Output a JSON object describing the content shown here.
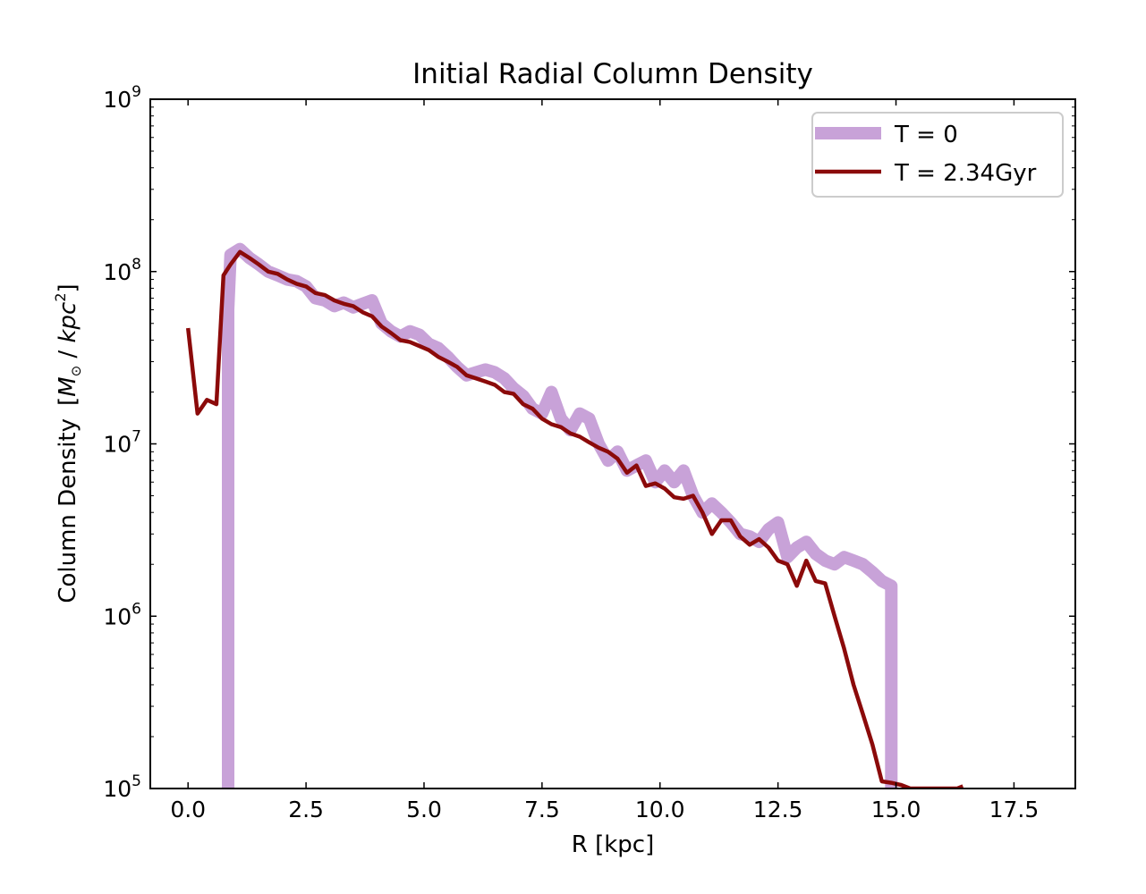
{
  "chart_data": {
    "type": "line",
    "title": "Initial Radial Column Density",
    "xlabel": "R [kpc]",
    "ylabel": "Column Density",
    "ylabel_unit": {
      "open": "[",
      "M": "M",
      "sub": "⊙",
      "sep": " / ",
      "kpc": "kpc",
      "sup": "2",
      "close": "]"
    },
    "xlim": [
      -0.8,
      18.8
    ],
    "ylim": [
      100000,
      1000000000
    ],
    "yscale": "log",
    "xticks": [
      0.0,
      2.5,
      5.0,
      7.5,
      10.0,
      12.5,
      15.0,
      17.5
    ],
    "xtick_labels": [
      "0.0",
      "2.5",
      "5.0",
      "7.5",
      "10.0",
      "12.5",
      "15.0",
      "17.5"
    ],
    "yticks": [
      {
        "value": 100000,
        "base": "10",
        "exp": "5"
      },
      {
        "value": 1000000,
        "base": "10",
        "exp": "6"
      },
      {
        "value": 10000000,
        "base": "10",
        "exp": "7"
      },
      {
        "value": 100000000,
        "base": "10",
        "exp": "8"
      },
      {
        "value": 1000000000,
        "base": "10",
        "exp": "9"
      }
    ],
    "grid": false,
    "legend_position": "top-right",
    "series": [
      {
        "name": "T = 0",
        "color": "#c8a2d8",
        "x": [
          0.85,
          0.85,
          0.9,
          1.1,
          1.3,
          1.5,
          1.7,
          1.9,
          2.1,
          2.3,
          2.5,
          2.7,
          2.9,
          3.1,
          3.3,
          3.5,
          3.7,
          3.9,
          4.1,
          4.3,
          4.5,
          4.7,
          4.9,
          5.1,
          5.3,
          5.5,
          5.7,
          5.9,
          6.1,
          6.3,
          6.5,
          6.7,
          6.9,
          7.1,
          7.3,
          7.5,
          7.7,
          7.9,
          8.1,
          8.3,
          8.5,
          8.7,
          8.9,
          9.1,
          9.3,
          9.5,
          9.7,
          9.9,
          10.1,
          10.3,
          10.5,
          10.7,
          10.9,
          11.1,
          11.3,
          11.5,
          11.7,
          11.9,
          12.1,
          12.3,
          12.5,
          12.7,
          12.9,
          13.1,
          13.3,
          13.5,
          13.7,
          13.9,
          14.1,
          14.3,
          14.5,
          14.7,
          14.9,
          14.9
        ],
        "y": [
          100000,
          60000000,
          125000000,
          135000000,
          120000000,
          110000000,
          100000000,
          95000000,
          90000000,
          88000000,
          82000000,
          70000000,
          68000000,
          63000000,
          66000000,
          62000000,
          65000000,
          68000000,
          50000000,
          45000000,
          42000000,
          45000000,
          43000000,
          38000000,
          36000000,
          32000000,
          28000000,
          25000000,
          26000000,
          27000000,
          26000000,
          24000000,
          21000000,
          19000000,
          16000000,
          15000000,
          20000000,
          14000000,
          12000000,
          15000000,
          14000000,
          10000000,
          8000000,
          9000000,
          7000000,
          7500000,
          8000000,
          6000000,
          7000000,
          6000000,
          7000000,
          5000000,
          4000000,
          4500000,
          4000000,
          3500000,
          3000000,
          2900000,
          2700000,
          3200000,
          3500000,
          2200000,
          2500000,
          2700000,
          2300000,
          2100000,
          2000000,
          2200000,
          2100000,
          2000000,
          1800000,
          1600000,
          1500000,
          100000
        ]
      },
      {
        "name": "T = 2.34Gyr",
        "color": "#8b0a0a",
        "x": [
          0.0,
          0.2,
          0.4,
          0.6,
          0.75,
          0.9,
          1.1,
          1.3,
          1.5,
          1.7,
          1.9,
          2.1,
          2.3,
          2.5,
          2.7,
          2.9,
          3.1,
          3.3,
          3.5,
          3.7,
          3.9,
          4.1,
          4.3,
          4.5,
          4.7,
          4.9,
          5.1,
          5.3,
          5.5,
          5.7,
          5.9,
          6.1,
          6.3,
          6.5,
          6.7,
          6.9,
          7.1,
          7.3,
          7.5,
          7.7,
          7.9,
          8.1,
          8.3,
          8.5,
          8.7,
          8.9,
          9.1,
          9.3,
          9.5,
          9.7,
          9.9,
          10.1,
          10.3,
          10.5,
          10.7,
          10.9,
          11.1,
          11.3,
          11.5,
          11.7,
          11.9,
          12.1,
          12.3,
          12.5,
          12.7,
          12.9,
          13.1,
          13.3,
          13.5,
          13.7,
          13.9,
          14.1,
          14.3,
          14.5,
          14.7,
          14.9,
          15.1,
          15.3,
          15.5,
          15.7,
          16.0,
          16.3,
          16.42
        ],
        "y": [
          47000000,
          15000000,
          18000000,
          17000000,
          95000000,
          110000000,
          130000000,
          120000000,
          110000000,
          100000000,
          97000000,
          90000000,
          85000000,
          82000000,
          75000000,
          73000000,
          68000000,
          65000000,
          63000000,
          58000000,
          55000000,
          48000000,
          44000000,
          40000000,
          39000000,
          37000000,
          35000000,
          32000000,
          30000000,
          28000000,
          25000000,
          24000000,
          23000000,
          22000000,
          20000000,
          19500000,
          17000000,
          16000000,
          14000000,
          13000000,
          12500000,
          11500000,
          11000000,
          10200000,
          9500000,
          9000000,
          8200000,
          6800000,
          7500000,
          5700000,
          5900000,
          5500000,
          4900000,
          4800000,
          5000000,
          4000000,
          3000000,
          3600000,
          3600000,
          2900000,
          2600000,
          2800000,
          2500000,
          2100000,
          2000000,
          1500000,
          2100000,
          1600000,
          1550000,
          1000000,
          650000,
          400000,
          270000,
          180000,
          110000,
          108000,
          105000,
          100000,
          100000,
          100000,
          100000,
          100000,
          103000
        ]
      }
    ]
  }
}
